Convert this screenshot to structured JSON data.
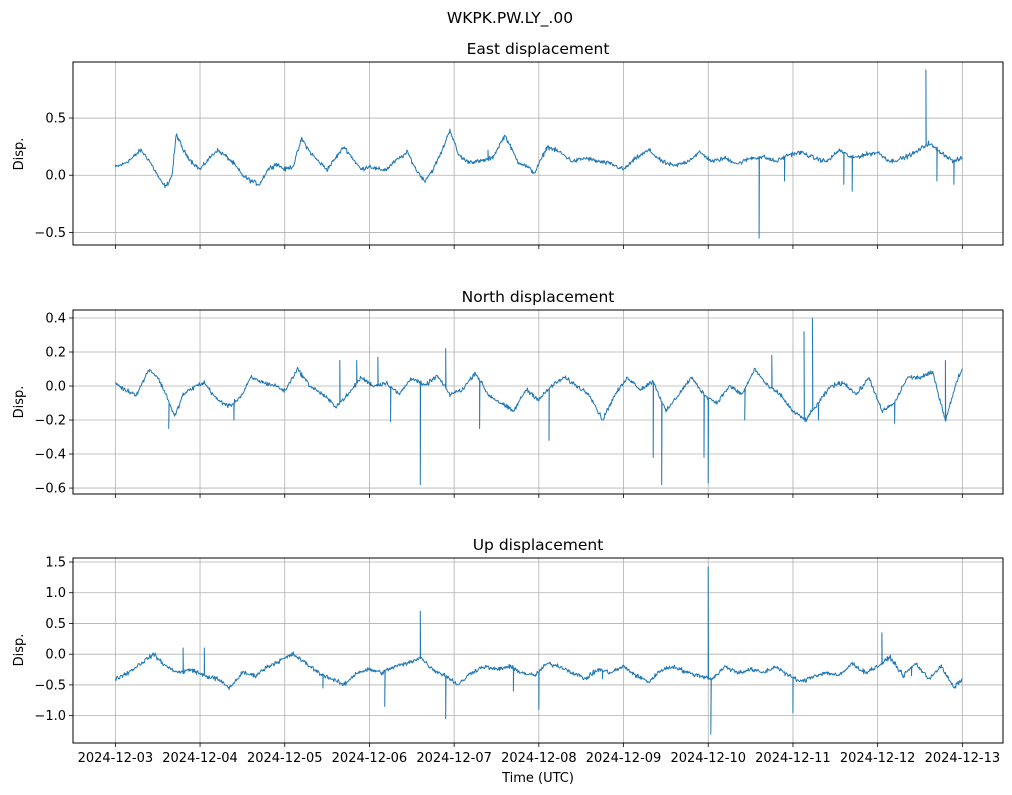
{
  "figure": {
    "suptitle": "WKPK.PW.LY_.00",
    "xlabel": "Time (UTC)",
    "line_color": "#1f77b4",
    "grid_color": "#b0b0b0"
  },
  "chart_data": [
    {
      "type": "line",
      "title": "East displacement",
      "xlabel": "",
      "ylabel": "Disp.",
      "x_unit": "days since 2024-12-03 00:00 UTC",
      "xlim": [
        -0.5,
        10.48
      ],
      "ylim": [
        -0.61,
        0.99
      ],
      "grid": true,
      "x_tick_values": [
        0,
        1,
        2,
        3,
        4,
        5,
        6,
        7,
        8,
        9,
        10
      ],
      "x_tick_labels": [],
      "y_ticks": [
        -0.5,
        0.0,
        0.5
      ],
      "y_tick_labels": [
        "−0.5",
        "0.0",
        "0.5"
      ],
      "series": [
        {
          "name": "East",
          "x": [
            0.0,
            0.1,
            0.2,
            0.3,
            0.4,
            0.55,
            0.6,
            0.67,
            0.72,
            0.8,
            0.9,
            1.0,
            1.1,
            1.2,
            1.3,
            1.4,
            1.5,
            1.6,
            1.7,
            1.8,
            1.9,
            2.0,
            2.1,
            2.2,
            2.3,
            2.4,
            2.5,
            2.6,
            2.7,
            2.8,
            2.9,
            3.0,
            3.1,
            3.2,
            3.3,
            3.45,
            3.55,
            3.65,
            3.75,
            3.85,
            3.95,
            4.05,
            4.15,
            4.3,
            4.45,
            4.6,
            4.75,
            4.85,
            4.95,
            5.1,
            5.25,
            5.4,
            5.55,
            5.7,
            5.85,
            6.0,
            6.15,
            6.3,
            6.45,
            6.6,
            6.75,
            6.9,
            7.05,
            7.2,
            7.35,
            7.5,
            7.65,
            7.8,
            7.95,
            8.1,
            8.25,
            8.4,
            8.55,
            8.7,
            8.85,
            9.0,
            9.15,
            9.3,
            9.45,
            9.6,
            9.75,
            9.9,
            10.0
          ],
          "y": [
            0.07,
            0.1,
            0.15,
            0.22,
            0.13,
            -0.07,
            -0.1,
            0.0,
            0.36,
            0.22,
            0.12,
            0.05,
            0.14,
            0.22,
            0.17,
            0.1,
            0.0,
            -0.05,
            -0.08,
            0.05,
            0.1,
            0.05,
            0.08,
            0.32,
            0.2,
            0.12,
            0.05,
            0.15,
            0.25,
            0.15,
            0.05,
            0.08,
            0.05,
            0.05,
            0.12,
            0.2,
            0.05,
            -0.05,
            0.05,
            0.2,
            0.4,
            0.18,
            0.12,
            0.12,
            0.15,
            0.35,
            0.12,
            0.08,
            0.02,
            0.25,
            0.2,
            0.12,
            0.15,
            0.12,
            0.1,
            0.05,
            0.15,
            0.22,
            0.12,
            0.08,
            0.12,
            0.2,
            0.12,
            0.15,
            0.1,
            0.15,
            0.16,
            0.12,
            0.18,
            0.2,
            0.15,
            0.12,
            0.22,
            0.15,
            0.18,
            0.2,
            0.12,
            0.15,
            0.2,
            0.28,
            0.2,
            0.12,
            0.15
          ],
          "spikes": [
            [
              4.4,
              0.22
            ],
            [
              7.6,
              -0.55
            ],
            [
              7.9,
              -0.05
            ],
            [
              8.7,
              -0.14
            ],
            [
              9.57,
              0.92
            ],
            [
              9.7,
              -0.05
            ],
            [
              10.45,
              0.0
            ],
            [
              9.9,
              -0.08
            ],
            [
              8.6,
              -0.08
            ]
          ]
        }
      ]
    },
    {
      "type": "line",
      "title": "North displacement",
      "xlabel": "",
      "ylabel": "Disp.",
      "x_unit": "days since 2024-12-03 00:00 UTC",
      "xlim": [
        -0.5,
        10.48
      ],
      "ylim": [
        -0.635,
        0.447
      ],
      "grid": true,
      "x_tick_values": [
        0,
        1,
        2,
        3,
        4,
        5,
        6,
        7,
        8,
        9,
        10
      ],
      "x_tick_labels": [],
      "y_ticks": [
        -0.6,
        -0.4,
        -0.2,
        0.0,
        0.2,
        0.4
      ],
      "y_tick_labels": [
        "−0.6",
        "−0.4",
        "−0.2",
        "0.0",
        "0.2",
        "0.4"
      ],
      "series": [
        {
          "name": "North",
          "x": [
            0.0,
            0.1,
            0.25,
            0.4,
            0.5,
            0.6,
            0.7,
            0.8,
            0.95,
            1.05,
            1.2,
            1.35,
            1.5,
            1.6,
            1.75,
            1.9,
            2.0,
            2.15,
            2.3,
            2.45,
            2.6,
            2.75,
            2.9,
            3.05,
            3.2,
            3.35,
            3.5,
            3.65,
            3.8,
            3.95,
            4.1,
            4.25,
            4.4,
            4.55,
            4.7,
            4.85,
            5.0,
            5.15,
            5.3,
            5.45,
            5.6,
            5.75,
            5.9,
            6.05,
            6.2,
            6.35,
            6.5,
            6.65,
            6.8,
            6.95,
            7.1,
            7.25,
            7.4,
            7.55,
            7.7,
            7.85,
            8.0,
            8.15,
            8.3,
            8.45,
            8.6,
            8.75,
            8.9,
            9.05,
            9.2,
            9.35,
            9.5,
            9.65,
            9.8,
            9.95,
            10.0
          ],
          "y": [
            0.02,
            -0.02,
            -0.05,
            0.1,
            0.05,
            -0.05,
            -0.18,
            -0.05,
            0.0,
            0.02,
            -0.08,
            -0.12,
            -0.05,
            0.05,
            0.02,
            0.0,
            -0.03,
            0.1,
            0.0,
            -0.05,
            -0.12,
            -0.05,
            0.05,
            0.0,
            0.02,
            -0.05,
            0.05,
            0.0,
            0.06,
            -0.05,
            -0.02,
            0.08,
            -0.05,
            -0.1,
            -0.15,
            -0.02,
            -0.08,
            0.0,
            0.05,
            0.0,
            -0.05,
            -0.2,
            -0.05,
            0.05,
            -0.02,
            0.03,
            -0.15,
            -0.05,
            0.05,
            -0.05,
            -0.1,
            0.0,
            -0.05,
            0.1,
            0.0,
            -0.05,
            -0.15,
            -0.2,
            -0.1,
            0.0,
            0.02,
            -0.05,
            0.05,
            -0.15,
            -0.1,
            0.05,
            0.05,
            0.08,
            -0.2,
            0.05,
            0.1
          ],
          "spikes": [
            [
              0.63,
              -0.25
            ],
            [
              1.4,
              -0.2
            ],
            [
              2.65,
              0.15
            ],
            [
              2.85,
              0.15
            ],
            [
              3.1,
              0.17
            ],
            [
              3.25,
              -0.21
            ],
            [
              3.6,
              -0.58
            ],
            [
              3.9,
              0.22
            ],
            [
              4.3,
              -0.25
            ],
            [
              5.12,
              -0.32
            ],
            [
              6.35,
              -0.42
            ],
            [
              6.45,
              -0.58
            ],
            [
              6.95,
              -0.42
            ],
            [
              7.0,
              -0.57
            ],
            [
              7.43,
              -0.2
            ],
            [
              7.75,
              0.18
            ],
            [
              8.13,
              0.32
            ],
            [
              8.23,
              0.4
            ],
            [
              8.3,
              -0.2
            ],
            [
              9.2,
              -0.22
            ],
            [
              9.8,
              0.15
            ]
          ]
        }
      ]
    },
    {
      "type": "line",
      "title": "Up displacement",
      "xlabel": "Time (UTC)",
      "ylabel": "Disp.",
      "x_unit": "days since 2024-12-03 00:00 UTC",
      "xlim": [
        -0.5,
        10.48
      ],
      "ylim": [
        -1.445,
        1.565
      ],
      "grid": true,
      "x_tick_values": [
        0,
        1,
        2,
        3,
        4,
        5,
        6,
        7,
        8,
        9,
        10
      ],
      "x_tick_labels": [
        "2024-12-03",
        "2024-12-04",
        "2024-12-05",
        "2024-12-06",
        "2024-12-07",
        "2024-12-08",
        "2024-12-09",
        "2024-12-10",
        "2024-12-11",
        "2024-12-12",
        "2024-12-13"
      ],
      "y_ticks": [
        -1.0,
        -0.5,
        0.0,
        0.5,
        1.0,
        1.5
      ],
      "y_tick_labels": [
        "−1.0",
        "−0.5",
        "0.0",
        "0.5",
        "1.0",
        "1.5"
      ],
      "series": [
        {
          "name": "Up",
          "x": [
            0.0,
            0.15,
            0.3,
            0.45,
            0.6,
            0.75,
            0.9,
            1.05,
            1.2,
            1.35,
            1.5,
            1.65,
            1.8,
            1.95,
            2.1,
            2.25,
            2.4,
            2.55,
            2.7,
            2.85,
            3.0,
            3.15,
            3.3,
            3.45,
            3.6,
            3.75,
            3.9,
            4.05,
            4.2,
            4.35,
            4.5,
            4.65,
            4.8,
            4.95,
            5.1,
            5.25,
            5.4,
            5.55,
            5.7,
            5.85,
            6.0,
            6.15,
            6.3,
            6.45,
            6.6,
            6.75,
            6.9,
            7.05,
            7.2,
            7.35,
            7.5,
            7.65,
            7.8,
            7.95,
            8.1,
            8.25,
            8.4,
            8.55,
            8.7,
            8.85,
            9.0,
            9.15,
            9.3,
            9.45,
            9.6,
            9.75,
            9.9,
            10.0
          ],
          "y": [
            -0.4,
            -0.3,
            -0.15,
            0.0,
            -0.2,
            -0.3,
            -0.25,
            -0.35,
            -0.4,
            -0.55,
            -0.3,
            -0.35,
            -0.2,
            -0.1,
            0.0,
            -0.15,
            -0.3,
            -0.4,
            -0.5,
            -0.3,
            -0.25,
            -0.3,
            -0.2,
            -0.15,
            -0.05,
            -0.25,
            -0.35,
            -0.5,
            -0.3,
            -0.2,
            -0.25,
            -0.2,
            -0.3,
            -0.35,
            -0.15,
            -0.2,
            -0.3,
            -0.4,
            -0.25,
            -0.3,
            -0.2,
            -0.35,
            -0.45,
            -0.25,
            -0.2,
            -0.3,
            -0.35,
            -0.4,
            -0.2,
            -0.3,
            -0.25,
            -0.3,
            -0.2,
            -0.35,
            -0.45,
            -0.35,
            -0.3,
            -0.35,
            -0.15,
            -0.3,
            -0.2,
            -0.05,
            -0.35,
            -0.15,
            -0.4,
            -0.2,
            -0.55,
            -0.4
          ],
          "spikes": [
            [
              0.8,
              0.1
            ],
            [
              1.05,
              0.1
            ],
            [
              2.45,
              -0.55
            ],
            [
              3.18,
              -0.85
            ],
            [
              3.6,
              0.7
            ],
            [
              3.9,
              -1.05
            ],
            [
              4.7,
              -0.6
            ],
            [
              5.0,
              -0.9
            ],
            [
              5.75,
              -0.4
            ],
            [
              7.0,
              1.42
            ],
            [
              7.03,
              -1.3
            ],
            [
              8.0,
              -0.95
            ],
            [
              8.3,
              -0.35
            ],
            [
              9.05,
              0.35
            ],
            [
              9.4,
              -0.35
            ]
          ]
        }
      ]
    }
  ]
}
